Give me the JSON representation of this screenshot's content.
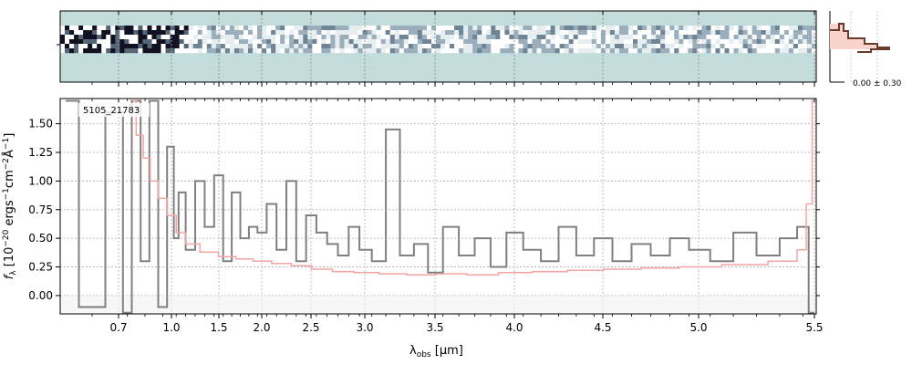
{
  "chart_data": {
    "type": "line",
    "object_id": "5105_21783",
    "xlabel_main": "λ",
    "xlabel_sub": "obs",
    "xlabel_unit": " [μm]",
    "ylabel": "f_λ [10^-20 ergs^-1 cm^-2 Å^-1]",
    "ylabel_prefix": "f",
    "ylabel_sub": "λ",
    "ylabel_mid": " [10",
    "ylabel_exp1": "−20",
    "ylabel_mid2": " ergs",
    "ylabel_exp2": "−1",
    "ylabel_mid3": "cm",
    "ylabel_exp3": "−2",
    "ylabel_mid4": "Å",
    "ylabel_exp4": "−1",
    "ylabel_end": "]",
    "xlim": [
      0.6,
      5.52
    ],
    "ylim": [
      -0.16,
      1.72
    ],
    "x_scale": "reciprocal-like (tick labels in μm)",
    "x_ticks": [
      {
        "v": 0.7,
        "label": "0.7"
      },
      {
        "v": 1.0,
        "label": "1.0"
      },
      {
        "v": 1.5,
        "label": "1.5"
      },
      {
        "v": 2.0,
        "label": "2.0"
      },
      {
        "v": 2.5,
        "label": "2.5"
      },
      {
        "v": 3.0,
        "label": "3.0"
      },
      {
        "v": 3.5,
        "label": "3.5"
      },
      {
        "v": 4.0,
        "label": "4.0"
      },
      {
        "v": 4.5,
        "label": "4.5"
      },
      {
        "v": 5.0,
        "label": "5.0"
      },
      {
        "v": 5.5,
        "label": "5.5"
      }
    ],
    "y_ticks": [
      {
        "v": 0.0,
        "label": "0.00"
      },
      {
        "v": 0.25,
        "label": "0.25"
      },
      {
        "v": 0.5,
        "label": "0.50"
      },
      {
        "v": 0.75,
        "label": "0.75"
      },
      {
        "v": 1.0,
        "label": "1.00"
      },
      {
        "v": 1.25,
        "label": "1.25"
      },
      {
        "v": 1.5,
        "label": "1.50"
      }
    ],
    "grid": true,
    "series": [
      {
        "role": "flux",
        "color": "#808080",
        "x": [
          0.6,
          0.65,
          0.7,
          0.75,
          0.8,
          0.85,
          0.9,
          0.95,
          1.0,
          1.05,
          1.1,
          1.2,
          1.3,
          1.4,
          1.5,
          1.6,
          1.7,
          1.8,
          1.9,
          2.0,
          2.1,
          2.2,
          2.3,
          2.4,
          2.5,
          2.6,
          2.7,
          2.8,
          2.9,
          3.0,
          3.1,
          3.2,
          3.3,
          3.4,
          3.5,
          3.6,
          3.7,
          3.8,
          3.9,
          4.0,
          4.1,
          4.2,
          4.3,
          4.4,
          4.5,
          4.6,
          4.7,
          4.8,
          4.9,
          5.0,
          5.1,
          5.2,
          5.3,
          5.4,
          5.45,
          5.5
        ],
        "y": [
          1.7,
          -0.1,
          1.6,
          -0.15,
          1.7,
          0.3,
          1.7,
          -0.1,
          1.3,
          0.5,
          0.9,
          0.4,
          1.0,
          0.6,
          1.05,
          0.3,
          0.9,
          0.5,
          0.6,
          0.55,
          0.8,
          0.4,
          1.0,
          0.3,
          0.7,
          0.55,
          0.45,
          0.35,
          0.6,
          0.4,
          0.3,
          1.45,
          0.35,
          0.45,
          0.2,
          0.6,
          0.35,
          0.5,
          0.25,
          0.55,
          0.4,
          0.3,
          0.6,
          0.35,
          0.5,
          0.3,
          0.45,
          0.35,
          0.5,
          0.4,
          0.3,
          0.55,
          0.35,
          0.5,
          0.6,
          -0.15
        ]
      },
      {
        "role": "uncertainty",
        "color": "#f4a6a6",
        "x": [
          0.78,
          0.82,
          0.86,
          0.9,
          0.95,
          1.0,
          1.1,
          1.2,
          1.4,
          1.6,
          1.8,
          2.0,
          2.2,
          2.4,
          2.6,
          2.8,
          3.0,
          3.2,
          3.4,
          3.6,
          3.8,
          4.0,
          4.2,
          4.4,
          4.6,
          4.8,
          5.0,
          5.2,
          5.4,
          5.45,
          5.48,
          5.5
        ],
        "y": [
          1.7,
          1.4,
          1.2,
          1.0,
          0.85,
          0.7,
          0.55,
          0.45,
          0.38,
          0.34,
          0.32,
          0.3,
          0.28,
          0.26,
          0.23,
          0.21,
          0.2,
          0.19,
          0.18,
          0.19,
          0.18,
          0.2,
          0.21,
          0.22,
          0.23,
          0.24,
          0.25,
          0.27,
          0.3,
          0.4,
          0.8,
          1.7
        ]
      }
    ],
    "inset": {
      "label": "0.00 ± 0.30"
    }
  },
  "colors": {
    "flux": "#808080",
    "uncertainty": "#f4a6a6",
    "twod_bg": "#c3dcdc",
    "inset_line": "#6b3b2b",
    "inset_fill": "#f8d3cc"
  }
}
